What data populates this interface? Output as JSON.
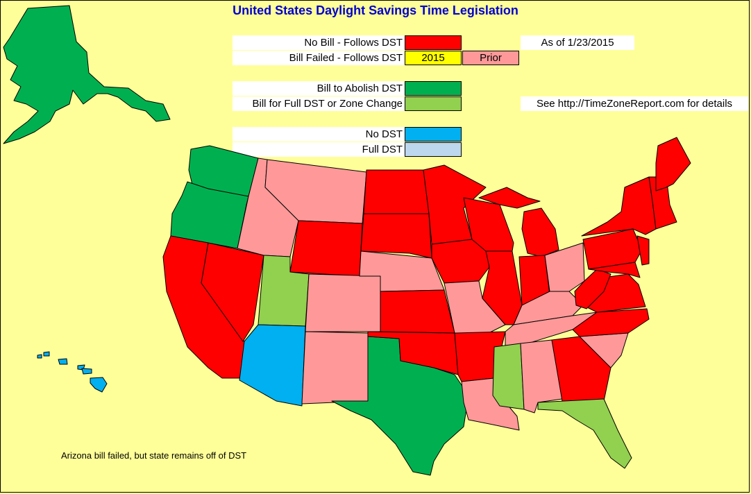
{
  "title": "United States Daylight Savings Time Legislation",
  "colors": {
    "no_bill": "#ff0000",
    "failed_2015": "#ffff00",
    "failed_prior": "#ff9999",
    "abolish": "#00b050",
    "full_dst_or_zone": "#92d050",
    "no_dst": "#00b0f0",
    "full_dst": "#bdd7ee",
    "background": "#ffff99"
  },
  "legend": {
    "no_bill": "No Bill - Follows DST",
    "bill_failed": "Bill Failed - Follows DST",
    "year_2015": "2015",
    "prior": "Prior",
    "abolish": "Bill to Abolish DST",
    "full_dst_zone": "Bill for Full DST or Zone Change",
    "no_dst": "No DST",
    "full_dst": "Full DST"
  },
  "as_of": "As of 1/23/2015",
  "see_note": "See http://TimeZoneReport.com for details",
  "footnote": "Arizona bill failed, but state remains off of DST",
  "states": {
    "AK": "abolish",
    "HI": "no_dst",
    "WA": "abolish",
    "OR": "abolish",
    "CA": "no_bill",
    "NV": "no_bill",
    "ID": "failed_prior",
    "MT": "failed_prior",
    "WY": "no_bill",
    "UT": "full_dst_or_zone",
    "AZ": "no_dst",
    "CO": "failed_prior",
    "NM": "failed_prior",
    "TX": "abolish",
    "ND": "no_bill",
    "SD": "no_bill",
    "NE": "failed_prior",
    "KS": "no_bill",
    "OK": "no_bill",
    "MN": "no_bill",
    "IA": "no_bill",
    "MO": "failed_prior",
    "AR": "no_bill",
    "LA": "failed_prior",
    "WI": "no_bill",
    "IL": "no_bill",
    "MS": "full_dst_or_zone",
    "MI": "no_bill",
    "IN": "no_bill",
    "KY": "failed_prior",
    "TN": "failed_prior",
    "AL": "failed_prior",
    "GA": "no_bill",
    "FL": "full_dst_or_zone",
    "OH": "failed_prior",
    "WV": "no_bill",
    "VA": "no_bill",
    "NC": "no_bill",
    "SC": "failed_prior",
    "PA": "no_bill",
    "NY": "no_bill",
    "NE_states": "no_bill",
    "ME": "no_bill",
    "MD": "no_bill",
    "NJ": "no_bill"
  }
}
